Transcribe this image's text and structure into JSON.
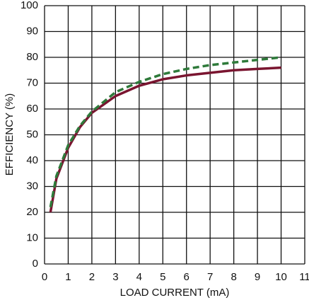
{
  "chart_data": {
    "type": "line",
    "xlabel": "LOAD CURRENT (mA)",
    "ylabel": "EFFICIENCY (%)",
    "x": [
      0.25,
      0.5,
      1,
      1.5,
      2,
      3,
      4,
      5,
      6,
      7,
      8,
      9,
      10
    ],
    "series": [
      {
        "color": "#7a1530",
        "linestyle": "solid",
        "values": [
          20,
          33,
          45,
          53,
          58.5,
          65,
          69,
          71.5,
          73,
          74,
          75,
          75.5,
          76
        ]
      },
      {
        "color": "#2e7a3a",
        "linestyle": "dashed",
        "values": [
          22,
          34,
          46,
          53.5,
          59,
          66.5,
          70.5,
          73.5,
          75.5,
          77,
          78,
          79,
          80
        ]
      }
    ],
    "xlim": [
      0,
      11
    ],
    "xticks": [
      0,
      1,
      2,
      3,
      4,
      5,
      6,
      7,
      8,
      9,
      10,
      11
    ],
    "ylim": [
      0,
      100
    ],
    "yticks": [
      0,
      10,
      20,
      30,
      40,
      50,
      60,
      70,
      80,
      90,
      100
    ],
    "grid": true
  }
}
